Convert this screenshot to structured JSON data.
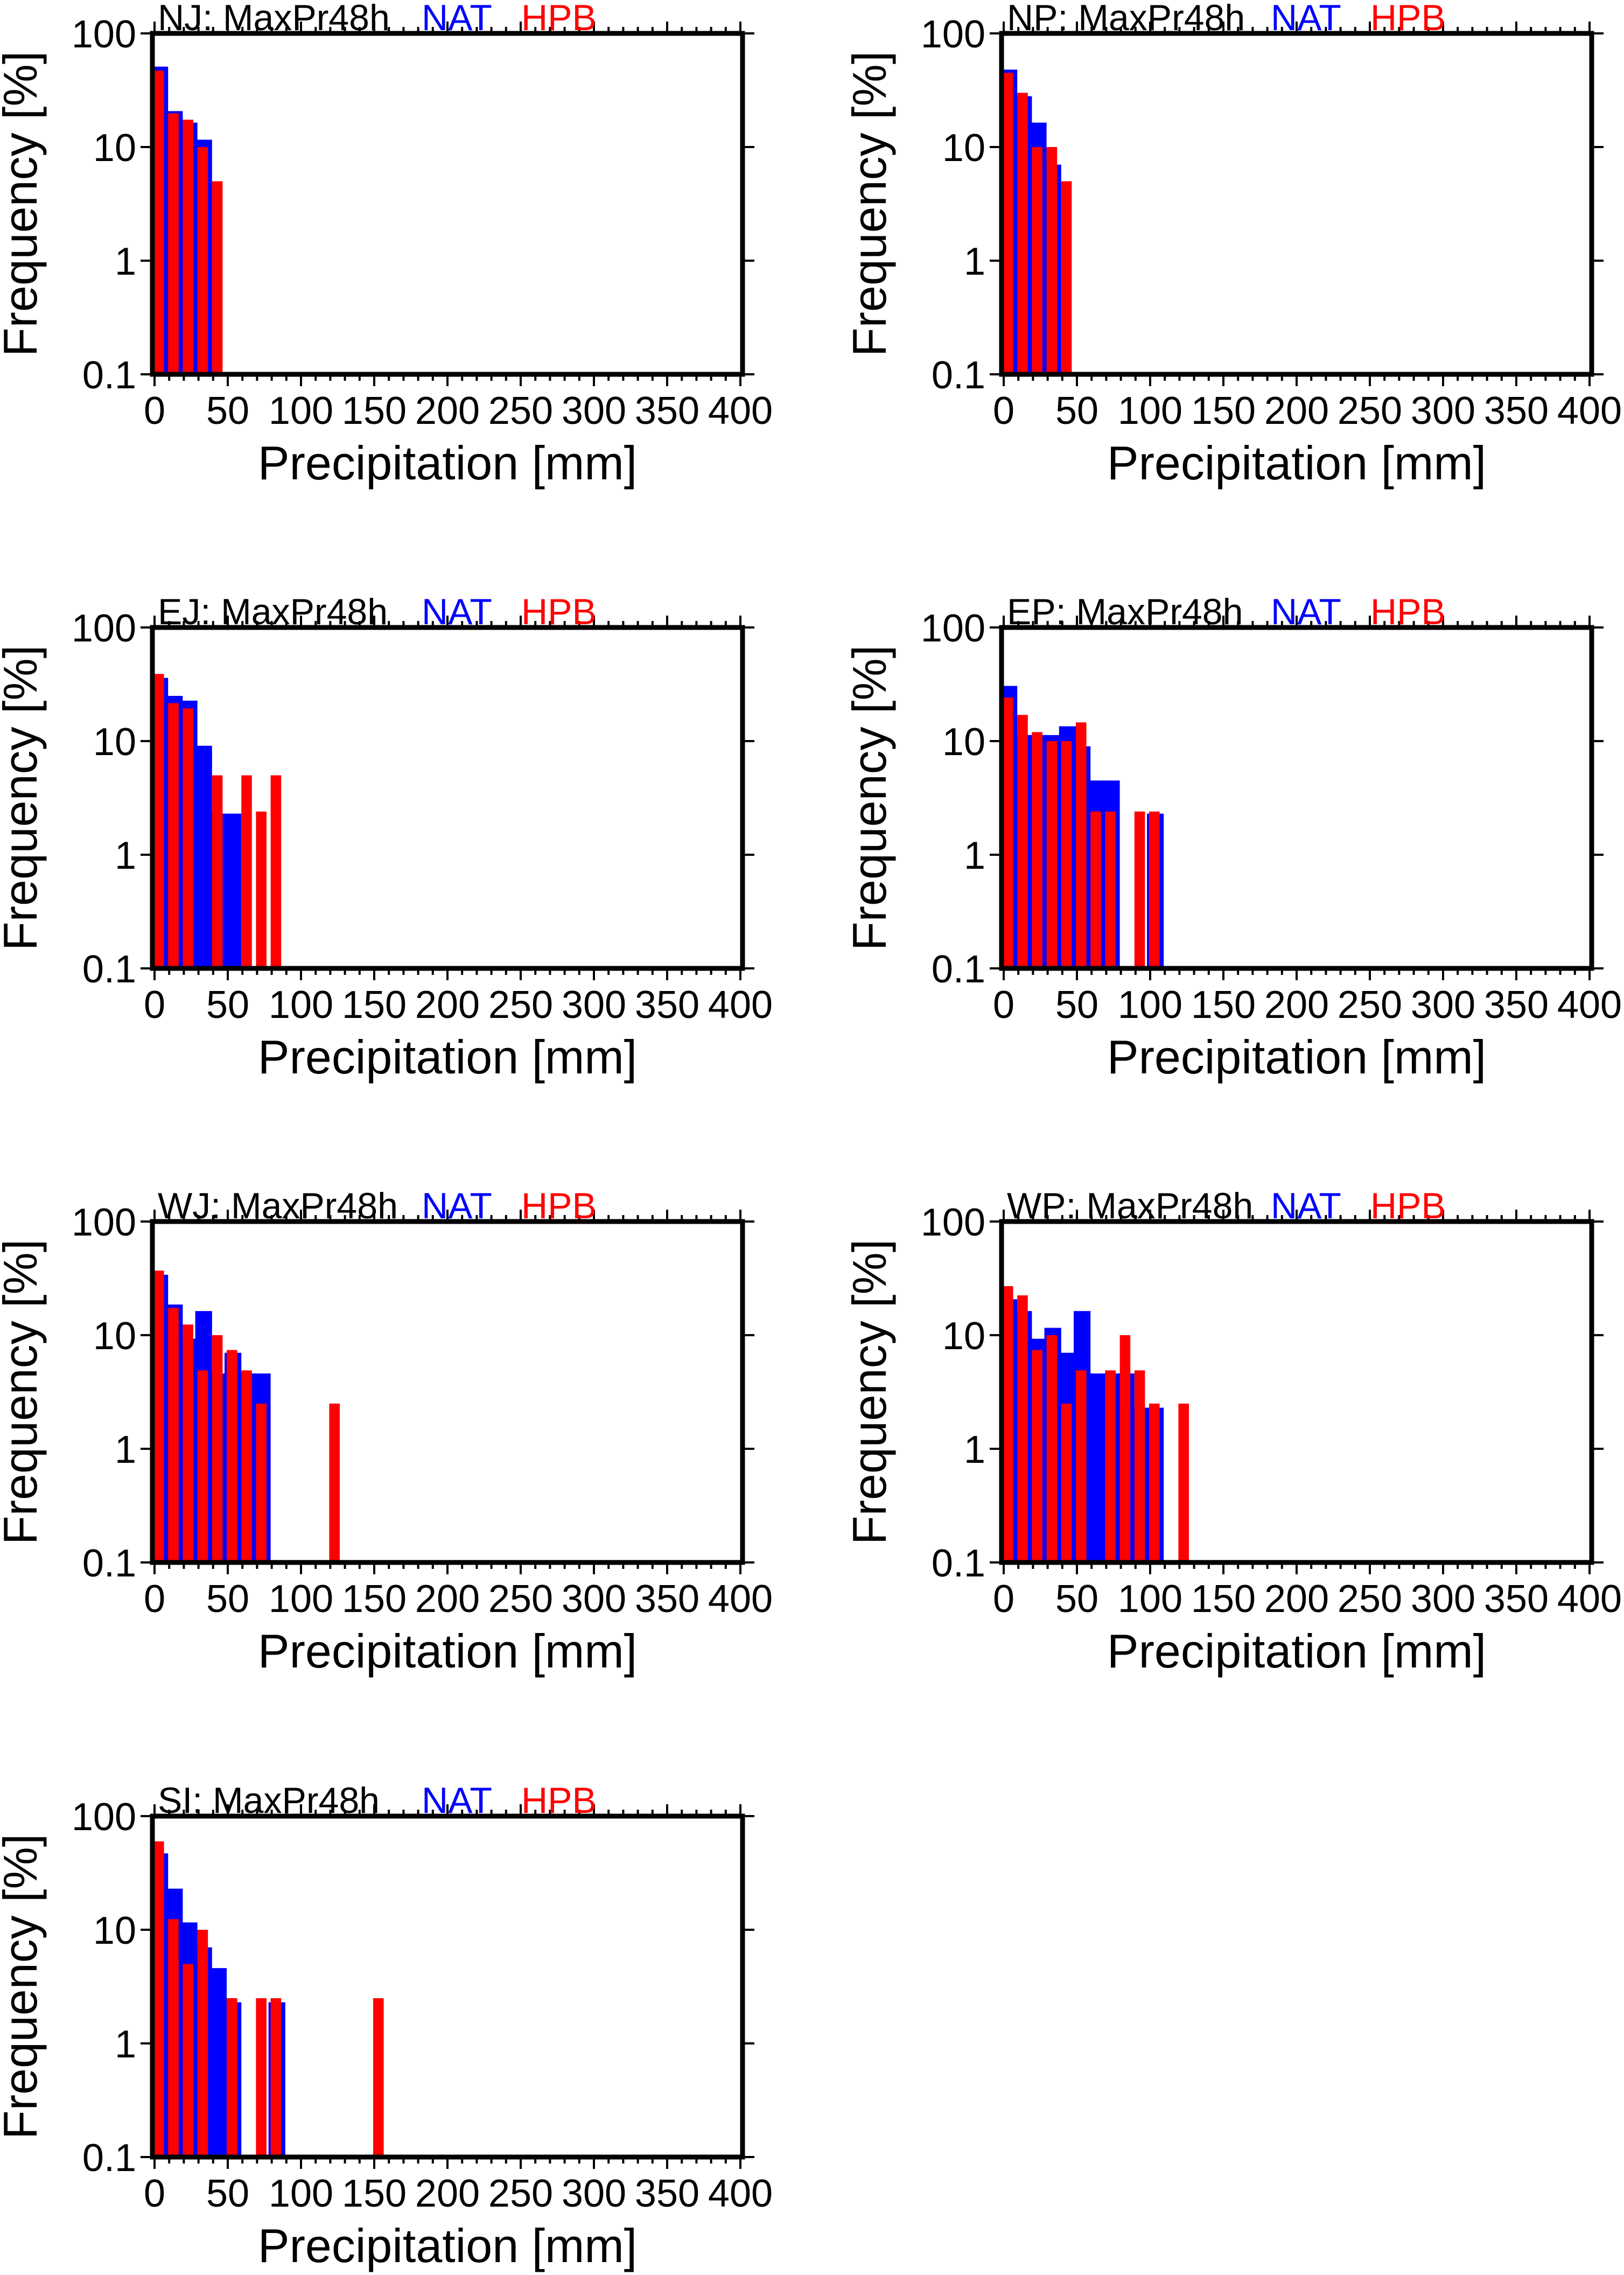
{
  "figure": {
    "colors": {
      "NAT": "#0000ff",
      "HPB": "#ff0000",
      "axis": "#000000"
    }
  },
  "chart_data": [
    {
      "type": "bar",
      "id": "NJ",
      "title": "NJ: MaxPr48h",
      "legend": [
        {
          "name": "NAT",
          "color": "#0000ff"
        },
        {
          "name": "HPB",
          "color": "#ff0000"
        }
      ],
      "legend_placement": "top",
      "xlabel": "Precipitation [mm]",
      "ylabel": "Frequency [%]",
      "xlim": [
        0,
        400
      ],
      "ylim": [
        0.1,
        100
      ],
      "yscale": "log",
      "xticks": [
        0,
        50,
        100,
        150,
        200,
        250,
        300,
        350,
        400
      ],
      "yticks": [
        0.1,
        1,
        10,
        100
      ],
      "ytick_labels": [
        "0.1",
        "1",
        "10",
        "100"
      ],
      "bin_width": 10,
      "series": [
        {
          "name": "NAT",
          "bins": [
            0,
            10,
            20,
            30
          ],
          "values": [
            51,
            20.7,
            16.4,
            11.6
          ]
        },
        {
          "name": "HPB",
          "bins": [
            0,
            10,
            20,
            30,
            40
          ],
          "values": [
            47,
            19.8,
            17.4,
            10,
            5
          ]
        }
      ]
    },
    {
      "type": "bar",
      "id": "NP",
      "title": "NP: MaxPr48h",
      "legend": [
        {
          "name": "NAT",
          "color": "#0000ff"
        },
        {
          "name": "HPB",
          "color": "#ff0000"
        }
      ],
      "legend_placement": "top",
      "xlabel": "Precipitation [mm]",
      "ylabel": "Frequency [%]",
      "xlim": [
        0,
        400
      ],
      "ylim": [
        0.1,
        100
      ],
      "yscale": "log",
      "xticks": [
        0,
        50,
        100,
        150,
        200,
        250,
        300,
        350,
        400
      ],
      "yticks": [
        0.1,
        1,
        10,
        100
      ],
      "ytick_labels": [
        "0.1",
        "1",
        "10",
        "100"
      ],
      "bin_width": 10,
      "series": [
        {
          "name": "NAT",
          "bins": [
            0,
            10,
            20,
            30
          ],
          "values": [
            48,
            28,
            16.4,
            7
          ]
        },
        {
          "name": "HPB",
          "bins": [
            0,
            10,
            20,
            30,
            40
          ],
          "values": [
            45,
            30,
            10,
            10,
            5
          ]
        }
      ]
    },
    {
      "type": "bar",
      "id": "EJ",
      "title": "EJ: MaxPr48h",
      "legend": [
        {
          "name": "NAT",
          "color": "#0000ff"
        },
        {
          "name": "HPB",
          "color": "#ff0000"
        }
      ],
      "legend_placement": "top",
      "xlabel": "Precipitation [mm]",
      "ylabel": "Frequency [%]",
      "xlim": [
        0,
        400
      ],
      "ylim": [
        0.1,
        100
      ],
      "yscale": "log",
      "xticks": [
        0,
        50,
        100,
        150,
        200,
        250,
        300,
        350,
        400
      ],
      "yticks": [
        0.1,
        1,
        10,
        100
      ],
      "ytick_labels": [
        "0.1",
        "1",
        "10",
        "100"
      ],
      "bin_width": 10,
      "series": [
        {
          "name": "NAT",
          "bins": [
            0,
            10,
            20,
            30,
            40,
            50
          ],
          "values": [
            36,
            25,
            22.7,
            9.1,
            2.3,
            2.3
          ]
        },
        {
          "name": "HPB",
          "bins": [
            0,
            10,
            20,
            40,
            60,
            70,
            80
          ],
          "values": [
            39,
            21.6,
            19.4,
            5,
            5,
            2.4,
            5
          ]
        }
      ]
    },
    {
      "type": "bar",
      "id": "EP",
      "title": "EP: MaxPr48h",
      "legend": [
        {
          "name": "NAT",
          "color": "#0000ff"
        },
        {
          "name": "HPB",
          "color": "#ff0000"
        }
      ],
      "legend_placement": "top",
      "xlabel": "Precipitation [mm]",
      "ylabel": "Frequency [%]",
      "xlim": [
        0,
        400
      ],
      "ylim": [
        0.1,
        100
      ],
      "yscale": "log",
      "xticks": [
        0,
        50,
        100,
        150,
        200,
        250,
        300,
        350,
        400
      ],
      "yticks": [
        0.1,
        1,
        10,
        100
      ],
      "ytick_labels": [
        "0.1",
        "1",
        "10",
        "100"
      ],
      "bin_width": 10,
      "series": [
        {
          "name": "NAT",
          "bins": [
            0,
            10,
            20,
            30,
            40,
            50,
            60,
            70,
            100
          ],
          "values": [
            30.6,
            11.3,
            11.3,
            11.3,
            13.5,
            9,
            4.5,
            4.5,
            2.3
          ]
        },
        {
          "name": "HPB",
          "bins": [
            0,
            10,
            20,
            30,
            40,
            50,
            60,
            70,
            90,
            100
          ],
          "values": [
            24.2,
            17,
            12,
            10,
            10,
            14.6,
            2.4,
            2.4,
            2.4,
            2.4
          ]
        }
      ]
    },
    {
      "type": "bar",
      "id": "WJ",
      "title": "WJ: MaxPr48h",
      "legend": [
        {
          "name": "NAT",
          "color": "#0000ff"
        },
        {
          "name": "HPB",
          "color": "#ff0000"
        }
      ],
      "legend_placement": "top",
      "xlabel": "Precipitation [mm]",
      "ylabel": "Frequency [%]",
      "xlim": [
        0,
        400
      ],
      "ylim": [
        0.1,
        100
      ],
      "yscale": "log",
      "xticks": [
        0,
        50,
        100,
        150,
        200,
        250,
        300,
        350,
        400
      ],
      "yticks": [
        0.1,
        1,
        10,
        100
      ],
      "ytick_labels": [
        "0.1",
        "1",
        "10",
        "100"
      ],
      "bin_width": 10,
      "series": [
        {
          "name": "NAT",
          "bins": [
            0,
            10,
            20,
            30,
            40,
            50,
            60,
            70
          ],
          "values": [
            34,
            18.6,
            9.3,
            16.3,
            4.6,
            7,
            4.6,
            4.6
          ]
        },
        {
          "name": "HPB",
          "bins": [
            0,
            10,
            20,
            30,
            40,
            50,
            60,
            70,
            120
          ],
          "values": [
            37,
            17.4,
            12.4,
            4.9,
            10,
            7.4,
            4.9,
            2.5,
            2.5
          ]
        }
      ]
    },
    {
      "type": "bar",
      "id": "WP",
      "title": "WP: MaxPr48h",
      "legend": [
        {
          "name": "NAT",
          "color": "#0000ff"
        },
        {
          "name": "HPB",
          "color": "#ff0000"
        }
      ],
      "legend_placement": "top",
      "xlabel": "Precipitation [mm]",
      "ylabel": "Frequency [%]",
      "xlim": [
        0,
        400
      ],
      "ylim": [
        0.1,
        100
      ],
      "yscale": "log",
      "xticks": [
        0,
        50,
        100,
        150,
        200,
        250,
        300,
        350,
        400
      ],
      "yticks": [
        0.1,
        1,
        10,
        100
      ],
      "ytick_labels": [
        "0.1",
        "1",
        "10",
        "100"
      ],
      "bin_width": 10,
      "series": [
        {
          "name": "NAT",
          "bins": [
            0,
            10,
            20,
            30,
            40,
            50,
            60,
            70,
            80,
            90,
            100
          ],
          "values": [
            20.7,
            16.3,
            9.3,
            11.6,
            7,
            16.3,
            4.6,
            4.6,
            4.6,
            2.3,
            2.3
          ]
        },
        {
          "name": "HPB",
          "bins": [
            0,
            10,
            20,
            30,
            40,
            50,
            70,
            80,
            90,
            100,
            120
          ],
          "values": [
            27,
            22.4,
            7.4,
            10,
            2.5,
            4.9,
            4.9,
            10,
            4.9,
            2.5,
            2.5
          ]
        }
      ]
    },
    {
      "type": "bar",
      "id": "SI",
      "title": "SI: MaxPr48h",
      "legend": [
        {
          "name": "NAT",
          "color": "#0000ff"
        },
        {
          "name": "HPB",
          "color": "#ff0000"
        }
      ],
      "legend_placement": "top",
      "xlabel": "Precipitation [mm]",
      "ylabel": "Frequency [%]",
      "xlim": [
        0,
        400
      ],
      "ylim": [
        0.1,
        100
      ],
      "yscale": "log",
      "xticks": [
        0,
        50,
        100,
        150,
        200,
        250,
        300,
        350,
        400
      ],
      "yticks": [
        0.1,
        1,
        10,
        100
      ],
      "ytick_labels": [
        "0.1",
        "1",
        "10",
        "100"
      ],
      "bin_width": 10,
      "series": [
        {
          "name": "NAT",
          "bins": [
            0,
            10,
            20,
            30,
            40,
            50,
            80
          ],
          "values": [
            47,
            23,
            11.6,
            7,
            4.6,
            2.3,
            2.3
          ]
        },
        {
          "name": "HPB",
          "bins": [
            0,
            10,
            20,
            30,
            50,
            70,
            80,
            150
          ],
          "values": [
            60,
            12.4,
            5,
            10,
            2.5,
            2.5,
            2.5,
            2.5
          ]
        }
      ]
    }
  ]
}
